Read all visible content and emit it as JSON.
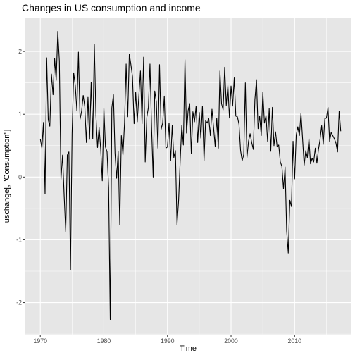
{
  "chart_data": {
    "type": "line",
    "title": "Changes in US consumption and income",
    "xlabel": "Time",
    "ylabel": "uschange[, \"Consumption\"]",
    "xlim": [
      1967.65,
      2018.83
    ],
    "ylim": [
      -2.51,
      2.54
    ],
    "x_ticks": [
      1970,
      1980,
      1990,
      2000,
      2010
    ],
    "y_ticks": [
      -2,
      -1,
      0,
      1,
      2
    ],
    "x_tick_labels": [
      "1970",
      "1980",
      "1990",
      "2000",
      "2010"
    ],
    "y_tick_labels": [
      "-2",
      "-1",
      "0",
      "1",
      "2"
    ],
    "grid": true,
    "background_color": "#e6e6e6",
    "grid_color": "#ffffff",
    "line_color": "#000000",
    "x_start": 1970.0,
    "x_step": 0.25,
    "series": [
      {
        "values": [
          0.61,
          0.46,
          0.87,
          -0.27,
          1.9,
          0.91,
          0.81,
          1.64,
          1.31,
          1.89,
          1.54,
          2.32,
          1.85,
          -0.04,
          0.35,
          -0.29,
          -0.87,
          0.35,
          0.4,
          -1.48,
          0.69,
          1.66,
          1.46,
          1.06,
          1.99,
          0.92,
          1.05,
          1.3,
          1.12,
          0.55,
          1.27,
          0.6,
          1.51,
          0.61,
          2.11,
          0.98,
          0.47,
          0.79,
          0.45,
          -0.06,
          1.1,
          0.48,
          0.4,
          -0.17,
          -2.27,
          1.1,
          1.31,
          0.38,
          -0.02,
          0.41,
          -0.76,
          0.66,
          0.35,
          0.86,
          1.8,
          0.96,
          1.96,
          1.79,
          1.6,
          0.85,
          1.35,
          0.88,
          1.29,
          1.69,
          0.85,
          1.91,
          0.24,
          0.95,
          1.11,
          1.8,
          0.79,
          0.0,
          1.37,
          1.2,
          0.46,
          1.79,
          0.76,
          0.86,
          1.29,
          0.46,
          0.48,
          0.86,
          0.26,
          0.82,
          0.31,
          0.42,
          -0.76,
          -0.38,
          0.26,
          0.82,
          0.51,
          1.87,
          0.7,
          1.06,
          1.17,
          0.37,
          1.04,
          0.88,
          1.13,
          0.55,
          1.03,
          0.62,
          1.13,
          0.26,
          0.9,
          0.86,
          0.93,
          0.66,
          1.08,
          0.79,
          0.49,
          0.94,
          0.46,
          1.69,
          1.17,
          1.07,
          1.75,
          1.14,
          1.46,
          0.94,
          1.45,
          1.13,
          1.58,
          0.97,
          0.96,
          0.84,
          0.42,
          0.26,
          0.36,
          1.5,
          0.31,
          0.57,
          0.69,
          0.55,
          0.44,
          1.23,
          1.55,
          0.77,
          0.97,
          0.66,
          1.35,
          0.86,
          0.98,
          0.57,
          1.09,
          0.41,
          1.11,
          0.5,
          0.72,
          0.48,
          0.51,
          0.24,
          0.17,
          -0.19,
          0.16,
          -0.86,
          -1.21,
          -0.37,
          -0.47,
          0.57,
          -0.03,
          0.67,
          0.8,
          0.66,
          1.02,
          0.61,
          0.19,
          0.42,
          0.31,
          0.61,
          0.21,
          0.3,
          0.24,
          0.46,
          0.22,
          0.44,
          0.6,
          0.82,
          0.52,
          0.93,
          0.94,
          1.11,
          0.57,
          0.71,
          0.66,
          0.61,
          0.54,
          0.4,
          1.05,
          0.73
        ]
      }
    ]
  }
}
